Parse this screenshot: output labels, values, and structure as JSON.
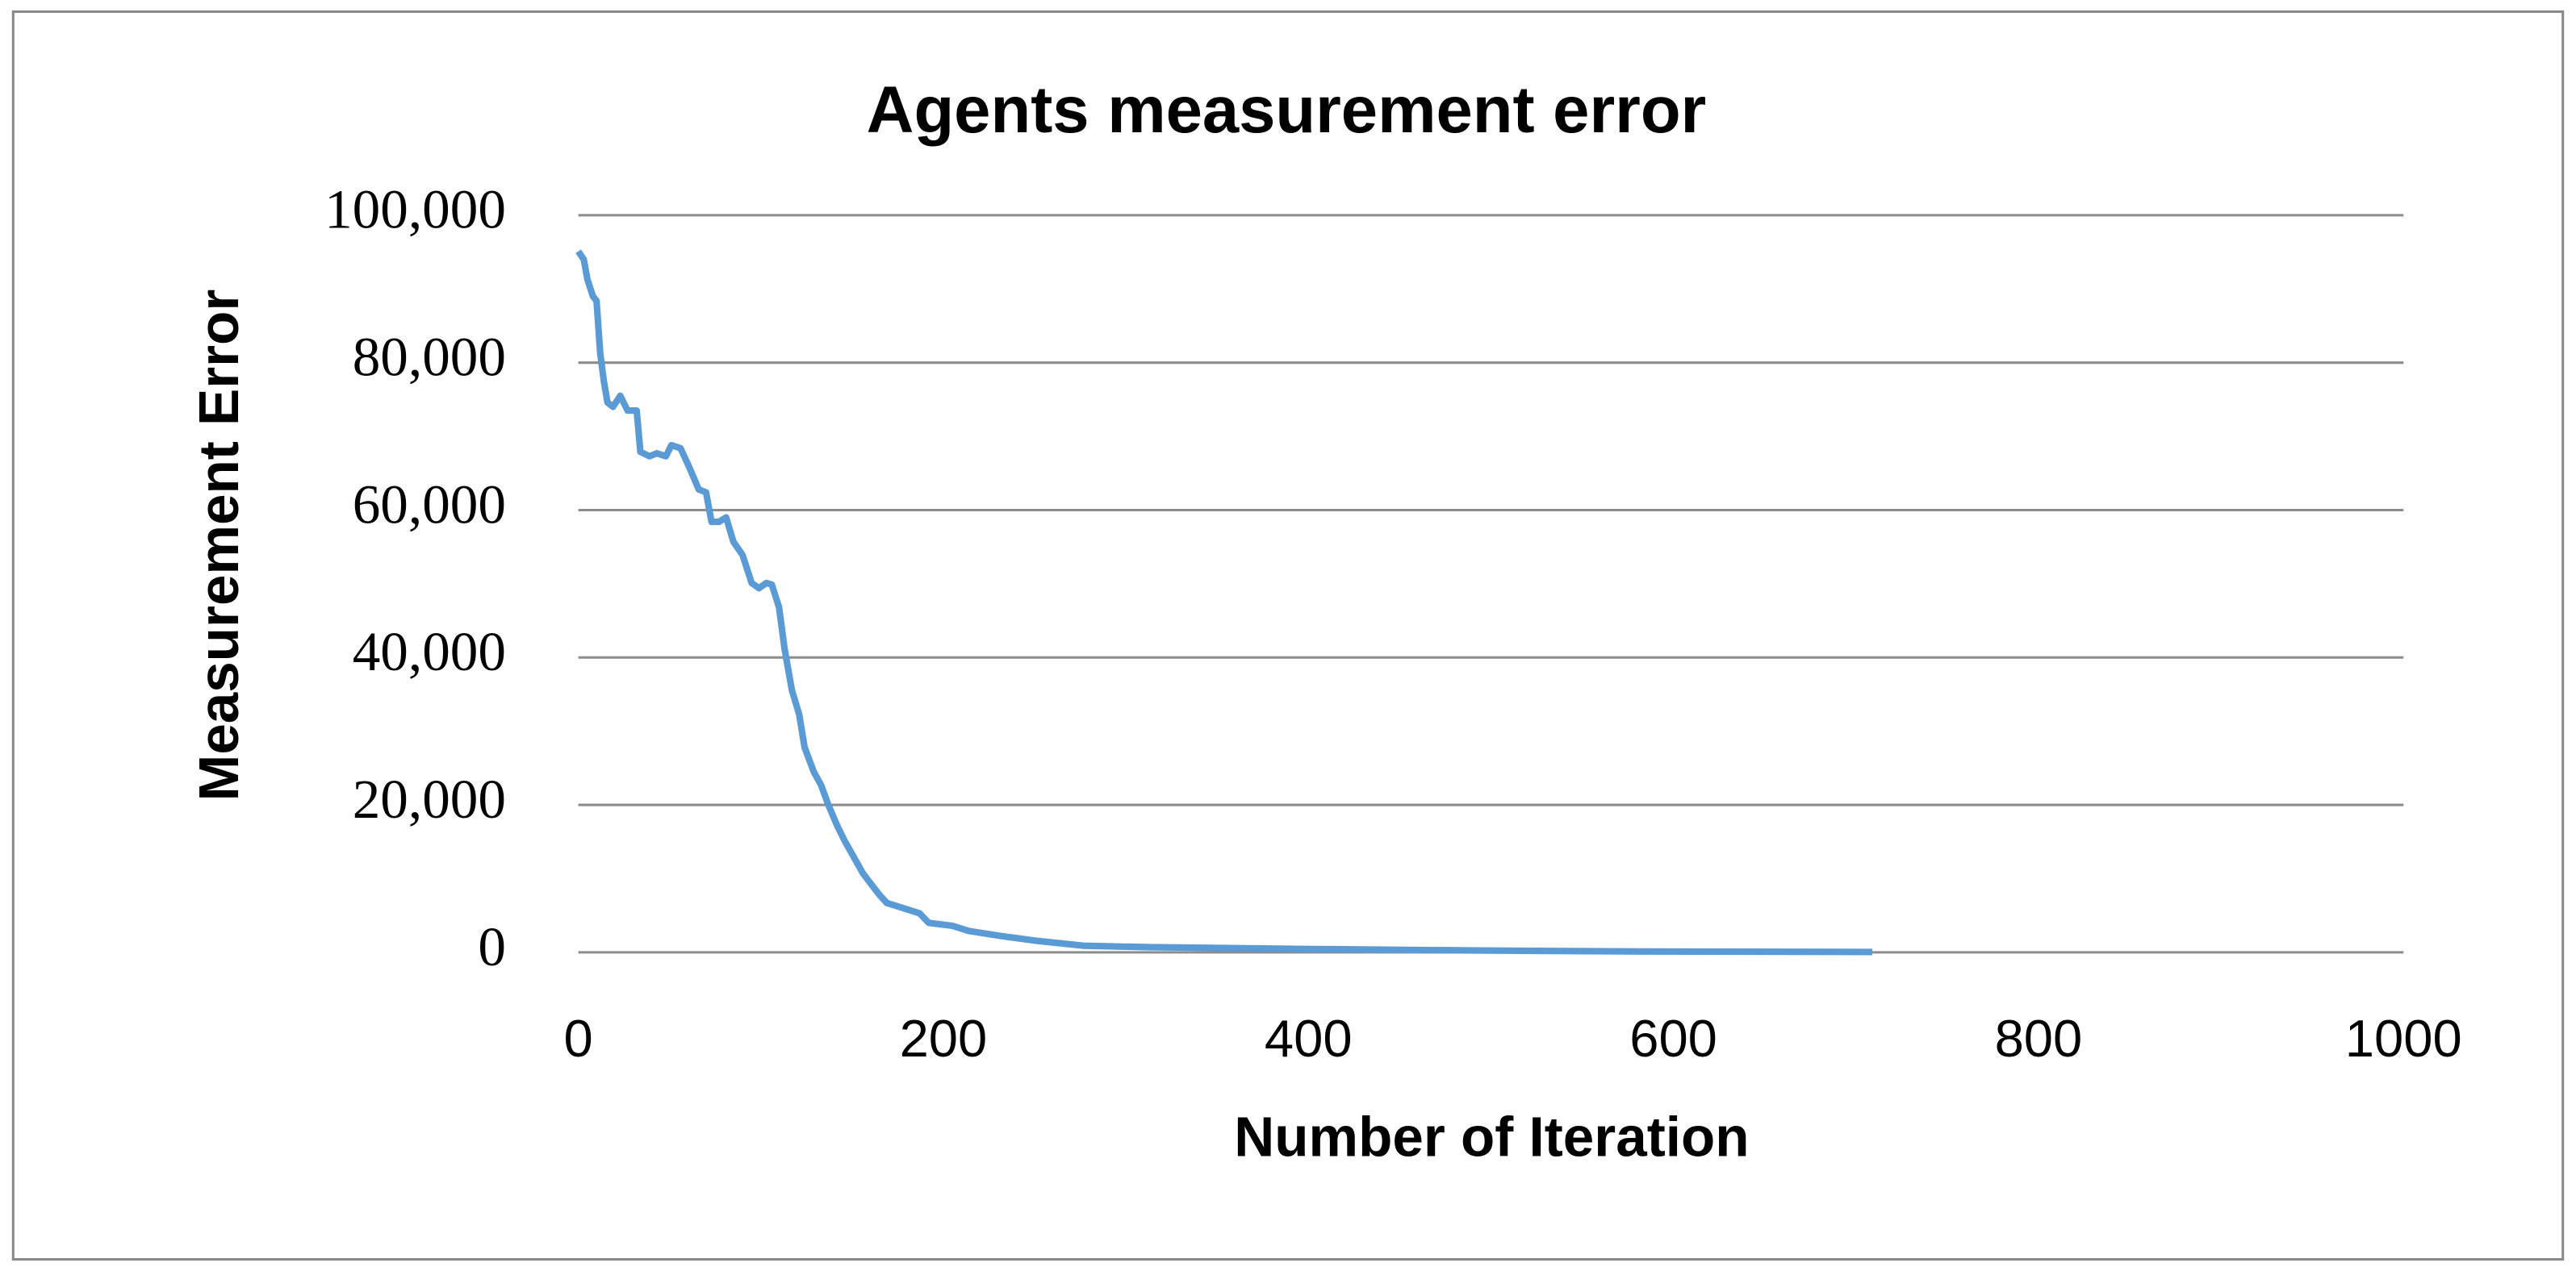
{
  "chart_data": {
    "type": "line",
    "title": "Agents measurement error",
    "x_label": "Number of Iteration",
    "y_label": "Measurement Error",
    "x": [
      0,
      3,
      5,
      8,
      10,
      12,
      14,
      16,
      19,
      23,
      27,
      32,
      34,
      39,
      43,
      48,
      51,
      56,
      61,
      66,
      70,
      73,
      77,
      81,
      85,
      90,
      95,
      99,
      103,
      106,
      110,
      113,
      117,
      121,
      124,
      129,
      133,
      137,
      142,
      146,
      151,
      156,
      160,
      165,
      169,
      178,
      187,
      192,
      205,
      214,
      232,
      250,
      277,
      313,
      403,
      493,
      583,
      709
    ],
    "series": [
      {
        "color": "#5b9bd5",
        "values": [
          95100,
          94000,
          91300,
          89000,
          88400,
          81300,
          77500,
          74600,
          74000,
          75500,
          73500,
          73500,
          67900,
          67300,
          67700,
          67300,
          68800,
          68400,
          65700,
          62800,
          62400,
          58400,
          58400,
          59000,
          55700,
          53900,
          50100,
          49400,
          50100,
          49900,
          46800,
          41200,
          35600,
          32300,
          27800,
          24500,
          22700,
          20000,
          17100,
          15100,
          12900,
          10700,
          9400,
          7800,
          6700,
          6000,
          5300,
          4000,
          3600,
          2900,
          2200,
          1600,
          900,
          700,
          450,
          250,
          120,
          50
        ]
      }
    ],
    "xlim": [
      0,
      1000
    ],
    "xticks": [
      0,
      200,
      400,
      600,
      800,
      1000
    ],
    "ylim": [
      0,
      100000
    ],
    "yticks": [
      0,
      {
        "value": 20000,
        "label": "20,000"
      },
      {
        "value": 40000,
        "label": "40,000"
      },
      {
        "value": 60000,
        "label": "60,000"
      },
      {
        "value": 80000,
        "label": "80,000"
      },
      {
        "value": 100000,
        "label": "100,000"
      }
    ],
    "grid": true
  }
}
